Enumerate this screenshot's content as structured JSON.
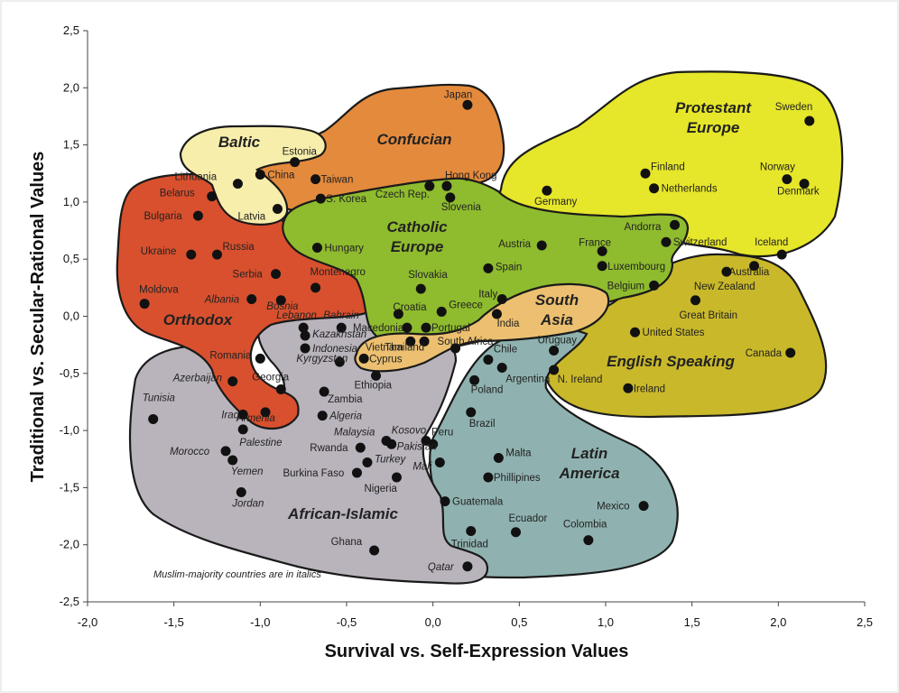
{
  "chart_data": {
    "type": "scatter",
    "xlabel": "Survival vs. Self-Expression Values",
    "ylabel": "Traditional vs. Secular-Rational Values",
    "xlim": [
      -2.0,
      2.5
    ],
    "ylim": [
      -2.5,
      2.5
    ],
    "x_ticks": [
      "-2,0",
      "-1,5",
      "-1,0",
      "-0,5",
      "0,0",
      "0,5",
      "1,0",
      "1,5",
      "2,0",
      "2,5"
    ],
    "y_ticks": [
      "2,5",
      "2,0",
      "1,5",
      "1,0",
      "0,5",
      "0,0",
      "-0,5",
      "-1,0",
      "-1,5",
      "-2,0",
      "-2,5"
    ],
    "grid": false,
    "note": "Muslim-majority countries are in italics",
    "regions": [
      {
        "name": "Protestant Europe",
        "color": "#e6e62a"
      },
      {
        "name": "English Speaking",
        "color": "#c9b82a"
      },
      {
        "name": "Latin America",
        "color": "#8fb2b0"
      },
      {
        "name": "African-Islamic",
        "color": "#b9b3bc"
      },
      {
        "name": "Orthodox",
        "color": "#d9502e"
      },
      {
        "name": "Confucian",
        "color": "#e48a3c"
      },
      {
        "name": "Baltic",
        "color": "#f7eeab"
      },
      {
        "name": "Catholic Europe",
        "color": "#8fbb2e"
      },
      {
        "name": "South Asia",
        "color": "#ecc070"
      }
    ],
    "points": [
      {
        "name": "Japan",
        "x": 0.2,
        "y": 1.85
      },
      {
        "name": "Estonia",
        "x": -0.8,
        "y": 1.35
      },
      {
        "name": "China",
        "x": -1.0,
        "y": 1.24
      },
      {
        "name": "Taiwan",
        "x": -0.68,
        "y": 1.2
      },
      {
        "name": "S. Korea",
        "x": -0.65,
        "y": 1.03
      },
      {
        "name": "Lithuania",
        "x": -1.13,
        "y": 1.16
      },
      {
        "name": "Latvia",
        "x": -0.9,
        "y": 0.94
      },
      {
        "name": "Hong Kong",
        "x": 0.08,
        "y": 1.14
      },
      {
        "name": "Czech Rep.",
        "x": -0.02,
        "y": 1.14
      },
      {
        "name": "Slovenia",
        "x": 0.1,
        "y": 1.04
      },
      {
        "name": "Belarus",
        "x": -1.28,
        "y": 1.05
      },
      {
        "name": "Bulgaria",
        "x": -1.36,
        "y": 0.88
      },
      {
        "name": "Ukraine",
        "x": -1.4,
        "y": 0.54
      },
      {
        "name": "Russia",
        "x": -1.25,
        "y": 0.54
      },
      {
        "name": "Hungary",
        "x": -0.67,
        "y": 0.6
      },
      {
        "name": "Serbia",
        "x": -0.91,
        "y": 0.37
      },
      {
        "name": "Montenegro",
        "x": -0.68,
        "y": 0.25
      },
      {
        "name": "Moldova",
        "x": -1.67,
        "y": 0.11
      },
      {
        "name": "Albania",
        "x": -1.05,
        "y": 0.15
      },
      {
        "name": "Bosnia",
        "x": -0.88,
        "y": 0.14
      },
      {
        "name": "Slovakia",
        "x": -0.07,
        "y": 0.24
      },
      {
        "name": "Croatia",
        "x": -0.2,
        "y": 0.02
      },
      {
        "name": "Macedonia",
        "x": -0.15,
        "y": -0.1
      },
      {
        "name": "Greece",
        "x": 0.05,
        "y": 0.04
      },
      {
        "name": "Portugal",
        "x": -0.04,
        "y": -0.1
      },
      {
        "name": "Italy",
        "x": 0.4,
        "y": 0.15
      },
      {
        "name": "Spain",
        "x": 0.32,
        "y": 0.42
      },
      {
        "name": "Austria",
        "x": 0.63,
        "y": 0.62
      },
      {
        "name": "France",
        "x": 0.98,
        "y": 0.57
      },
      {
        "name": "Luxembourg",
        "x": 0.98,
        "y": 0.44
      },
      {
        "name": "Belgium",
        "x": 1.28,
        "y": 0.27
      },
      {
        "name": "Andorra",
        "x": 1.4,
        "y": 0.8
      },
      {
        "name": "Switzerland",
        "x": 1.35,
        "y": 0.65
      },
      {
        "name": "Germany",
        "x": 0.66,
        "y": 1.1
      },
      {
        "name": "Finland",
        "x": 1.23,
        "y": 1.25
      },
      {
        "name": "Netherlands",
        "x": 1.28,
        "y": 1.12
      },
      {
        "name": "Sweden",
        "x": 2.18,
        "y": 1.71
      },
      {
        "name": "Norway",
        "x": 2.05,
        "y": 1.2
      },
      {
        "name": "Denmark",
        "x": 2.15,
        "y": 1.16
      },
      {
        "name": "Iceland",
        "x": 2.02,
        "y": 0.54
      },
      {
        "name": "Australia",
        "x": 1.86,
        "y": 0.44
      },
      {
        "name": "New Zealand",
        "x": 1.7,
        "y": 0.39
      },
      {
        "name": "Great Britain",
        "x": 1.52,
        "y": 0.14
      },
      {
        "name": "United States",
        "x": 1.17,
        "y": -0.14
      },
      {
        "name": "Canada",
        "x": 2.07,
        "y": -0.32
      },
      {
        "name": "Ireland",
        "x": 1.13,
        "y": -0.63
      },
      {
        "name": "N. Ireland",
        "x": 0.7,
        "y": -0.47
      },
      {
        "name": "Uruguay",
        "x": 0.7,
        "y": -0.3
      },
      {
        "name": "India",
        "x": 0.37,
        "y": 0.02
      },
      {
        "name": "Lebanon",
        "x": -0.75,
        "y": -0.1
      },
      {
        "name": "Bahrain",
        "x": -0.53,
        "y": -0.1
      },
      {
        "name": "Kazakhstan",
        "x": -0.74,
        "y": -0.17
      },
      {
        "name": "Indonesia",
        "x": -0.74,
        "y": -0.28
      },
      {
        "name": "Romania",
        "x": -1.0,
        "y": -0.37
      },
      {
        "name": "Kyrgyzstan",
        "x": -0.54,
        "y": -0.4
      },
      {
        "name": "Vietnam",
        "x": -0.13,
        "y": -0.22
      },
      {
        "name": "Thailand",
        "x": -0.05,
        "y": -0.22
      },
      {
        "name": "Cyprus",
        "x": -0.4,
        "y": -0.37
      },
      {
        "name": "South Africa",
        "x": 0.13,
        "y": -0.28
      },
      {
        "name": "Chile",
        "x": 0.32,
        "y": -0.38
      },
      {
        "name": "Argentina",
        "x": 0.4,
        "y": -0.45
      },
      {
        "name": "Poland",
        "x": 0.24,
        "y": -0.56
      },
      {
        "name": "Georgia",
        "x": -0.88,
        "y": -0.64
      },
      {
        "name": "Azerbaijan",
        "x": -1.16,
        "y": -0.57
      },
      {
        "name": "Armenia",
        "x": -0.97,
        "y": -0.84
      },
      {
        "name": "Ethiopia",
        "x": -0.33,
        "y": -0.52
      },
      {
        "name": "Zambia",
        "x": -0.63,
        "y": -0.66
      },
      {
        "name": "Algeria",
        "x": -0.64,
        "y": -0.87
      },
      {
        "name": "Tunisia",
        "x": -1.62,
        "y": -0.9
      },
      {
        "name": "Iraq",
        "x": -1.1,
        "y": -0.86
      },
      {
        "name": "Palestine",
        "x": -1.1,
        "y": -0.99
      },
      {
        "name": "Brazil",
        "x": 0.22,
        "y": -0.84
      },
      {
        "name": "Malaysia",
        "x": -0.27,
        "y": -1.09
      },
      {
        "name": "Kosovo",
        "x": -0.24,
        "y": -1.12
      },
      {
        "name": "Peru",
        "x": -0.04,
        "y": -1.09
      },
      {
        "name": "Rwanda",
        "x": -0.42,
        "y": -1.15
      },
      {
        "name": "Pakistan",
        "x": 0.0,
        "y": -1.12
      },
      {
        "name": "Turkey",
        "x": -0.38,
        "y": -1.28
      },
      {
        "name": "Burkina Faso",
        "x": -0.44,
        "y": -1.37
      },
      {
        "name": "Mali",
        "x": 0.04,
        "y": -1.28
      },
      {
        "name": "Morocco",
        "x": -1.2,
        "y": -1.18
      },
      {
        "name": "Yemen",
        "x": -1.16,
        "y": -1.26
      },
      {
        "name": "Malta",
        "x": 0.38,
        "y": -1.24
      },
      {
        "name": "Phillipines",
        "x": 0.32,
        "y": -1.41
      },
      {
        "name": "Nigeria",
        "x": -0.21,
        "y": -1.41
      },
      {
        "name": "Jordan",
        "x": -1.11,
        "y": -1.54
      },
      {
        "name": "Guatemala",
        "x": 0.07,
        "y": -1.62
      },
      {
        "name": "Mexico",
        "x": 1.22,
        "y": -1.66
      },
      {
        "name": "Ecuador",
        "x": 0.48,
        "y": -1.89
      },
      {
        "name": "Colombia",
        "x": 0.9,
        "y": -1.96
      },
      {
        "name": "Trinidad",
        "x": 0.22,
        "y": -1.88
      },
      {
        "name": "Ghana",
        "x": -0.34,
        "y": -2.05
      },
      {
        "name": "Qatar",
        "x": 0.2,
        "y": -2.19
      }
    ]
  },
  "italic_countries": [
    "Albania",
    "Bosnia",
    "Lebanon",
    "Bahrain",
    "Kazakhstan",
    "Indonesia",
    "Kyrgyzstan",
    "Azerbaijan",
    "Armenia",
    "Algeria",
    "Tunisia",
    "Iraq",
    "Palestine",
    "Malaysia",
    "Kosovo",
    "Pakistan",
    "Turkey",
    "Mali",
    "Morocco",
    "Yemen",
    "Jordan",
    "Qatar"
  ],
  "region_labels": [
    {
      "lines": [
        "Baltic"
      ]
    },
    {
      "lines": [
        "Confucian"
      ]
    },
    {
      "lines": [
        "Protestant",
        "Europe"
      ]
    },
    {
      "lines": [
        "Catholic",
        "Europe"
      ]
    },
    {
      "lines": [
        "Orthodox"
      ]
    },
    {
      "lines": [
        "South",
        "Asia"
      ]
    },
    {
      "lines": [
        "English Speaking"
      ]
    },
    {
      "lines": [
        "Latin",
        "America"
      ]
    },
    {
      "lines": [
        "African-Islamic"
      ]
    }
  ]
}
